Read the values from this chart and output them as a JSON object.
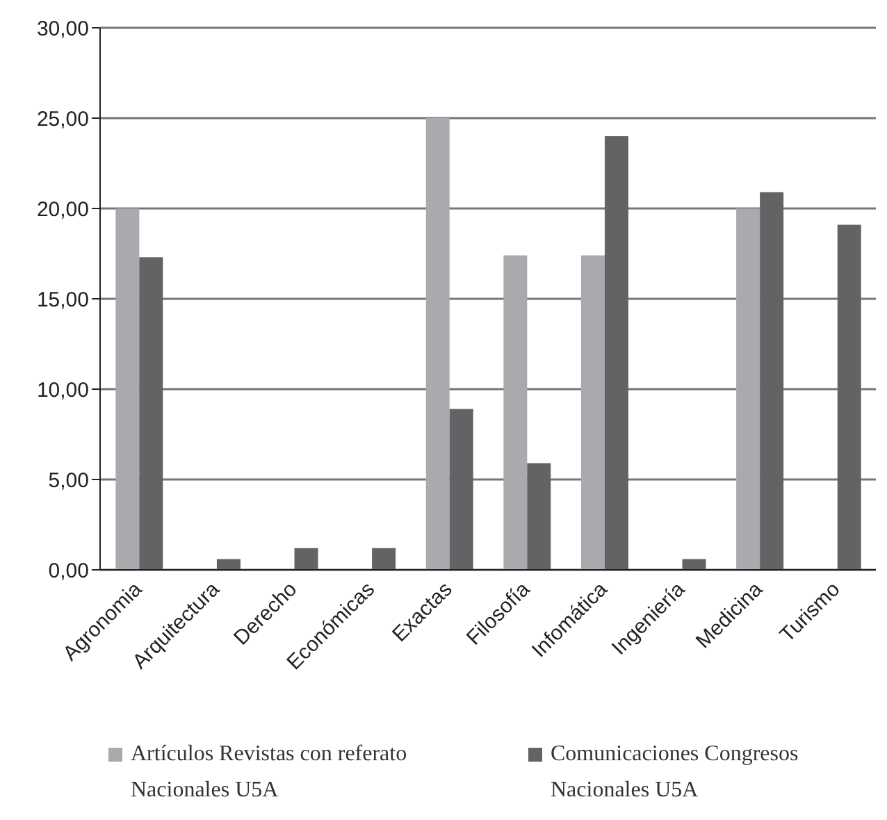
{
  "chart_data": {
    "type": "bar",
    "categories": [
      "Agronomia",
      "Arquitectura",
      "Derecho",
      "Económicas",
      "Exactas",
      "Filosofía",
      "Infomática",
      "Ingeniería",
      "Medicina",
      "Turismo"
    ],
    "series": [
      {
        "name": "Artículos Revistas con referato Nacionales U5A",
        "color": "#a9aaad",
        "values": [
          20,
          0,
          0,
          0,
          25,
          17.4,
          17.4,
          0,
          20,
          0
        ]
      },
      {
        "name": "Comunicaciones Congresos Nacionales U5A",
        "color": "#636365",
        "values": [
          17.3,
          0.6,
          1.2,
          1.2,
          8.9,
          5.9,
          24,
          0.6,
          20.9,
          19.1
        ]
      }
    ],
    "ylim": [
      0,
      30
    ],
    "yticks": [
      {
        "value": 0,
        "label": "0,00"
      },
      {
        "value": 5,
        "label": "5,00"
      },
      {
        "value": 10,
        "label": "10,00"
      },
      {
        "value": 15,
        "label": "15,00"
      },
      {
        "value": 20,
        "label": "20,00"
      },
      {
        "value": 25,
        "label": "25,00"
      },
      {
        "value": 30,
        "label": "30,00"
      }
    ],
    "grid": "y",
    "legend": "bottom"
  }
}
